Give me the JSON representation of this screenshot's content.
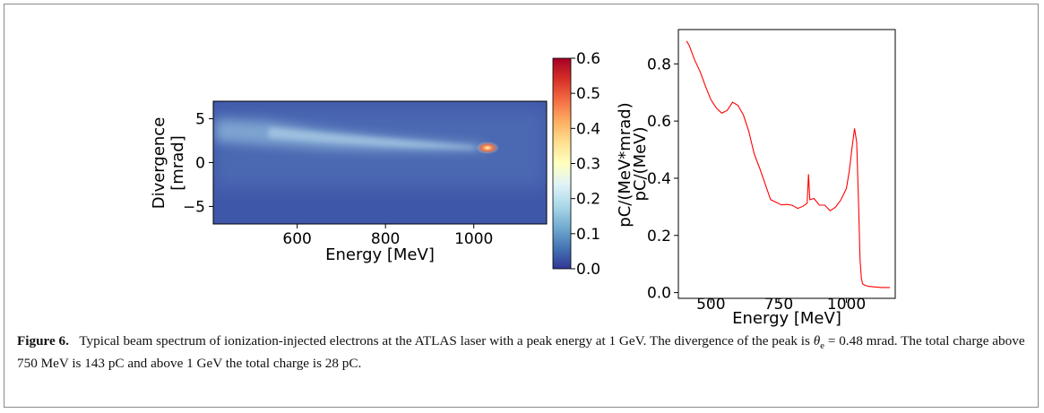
{
  "caption": {
    "label": "Figure 6.",
    "text_part1": "Typical beam spectrum of ionization-injected electrons at the ATLAS laser with a peak energy at 1 GeV. The divergence of the peak is ",
    "theta_symbol": "θ",
    "theta_sub": "e",
    "text_part2": " = 0.48 mrad. The total charge above 750 MeV is 143 pC and above 1 GeV the total charge is 28 pC."
  },
  "chart_data": [
    {
      "type": "heatmap",
      "title": "",
      "xlabel": "Energy [MeV]",
      "ylabel": "Divergence\n[mrad]",
      "xlim": [
        410,
        1165
      ],
      "ylim": [
        -7,
        7
      ],
      "x_ticks": [
        600,
        800,
        1000
      ],
      "y_ticks": [
        5,
        0,
        -5
      ],
      "features": [
        {
          "name": "peak",
          "energy": 1035,
          "divergence": 1.5,
          "intensity": 0.6
        },
        {
          "name": "tail",
          "energy_range": [
            420,
            1030
          ],
          "divergence_range": [
            3.5,
            1.6
          ],
          "intensity": 0.2
        }
      ],
      "colorbar": {
        "label": "pC/(MeV*mrad)",
        "range": [
          0.0,
          0.6
        ],
        "ticks": [
          "0.0",
          "0.1",
          "0.2",
          "0.3",
          "0.4",
          "0.5",
          "0.6"
        ],
        "colormap": [
          "#313695",
          "#4575b4",
          "#74add1",
          "#abd9e9",
          "#e0f3f8",
          "#ffffbf",
          "#fee090",
          "#fdae61",
          "#f46d43",
          "#d73027",
          "#a50026"
        ]
      }
    },
    {
      "type": "line",
      "title": "",
      "xlabel": "Energy [MeV]",
      "ylabel": "pC/(MeV)",
      "xlim": [
        380,
        1180
      ],
      "ylim": [
        -0.02,
        0.92
      ],
      "x_ticks": [
        "500",
        "750",
        "1000"
      ],
      "y_ticks": [
        "0.0",
        "0.2",
        "0.4",
        "0.6",
        "0.8"
      ],
      "color": "#ff0000",
      "series": [
        {
          "x": [
            410,
            420,
            440,
            460,
            480,
            500,
            520,
            540,
            560,
            580,
            600,
            620,
            640,
            660,
            680,
            700,
            720,
            740,
            760,
            780,
            800,
            820,
            840,
            855,
            860,
            865,
            880,
            900,
            920,
            940,
            960,
            980,
            1000,
            1010,
            1020,
            1030,
            1038,
            1045,
            1050,
            1055,
            1060,
            1070,
            1080,
            1100,
            1130,
            1160
          ],
          "y": [
            0.88,
            0.86,
            0.82,
            0.77,
            0.72,
            0.68,
            0.64,
            0.63,
            0.64,
            0.66,
            0.66,
            0.62,
            0.56,
            0.49,
            0.43,
            0.38,
            0.33,
            0.31,
            0.31,
            0.31,
            0.3,
            0.3,
            0.3,
            0.31,
            0.42,
            0.32,
            0.33,
            0.31,
            0.3,
            0.29,
            0.3,
            0.32,
            0.37,
            0.42,
            0.5,
            0.58,
            0.52,
            0.3,
            0.12,
            0.05,
            0.03,
            0.025,
            0.022,
            0.02,
            0.018,
            0.018
          ]
        }
      ]
    }
  ]
}
